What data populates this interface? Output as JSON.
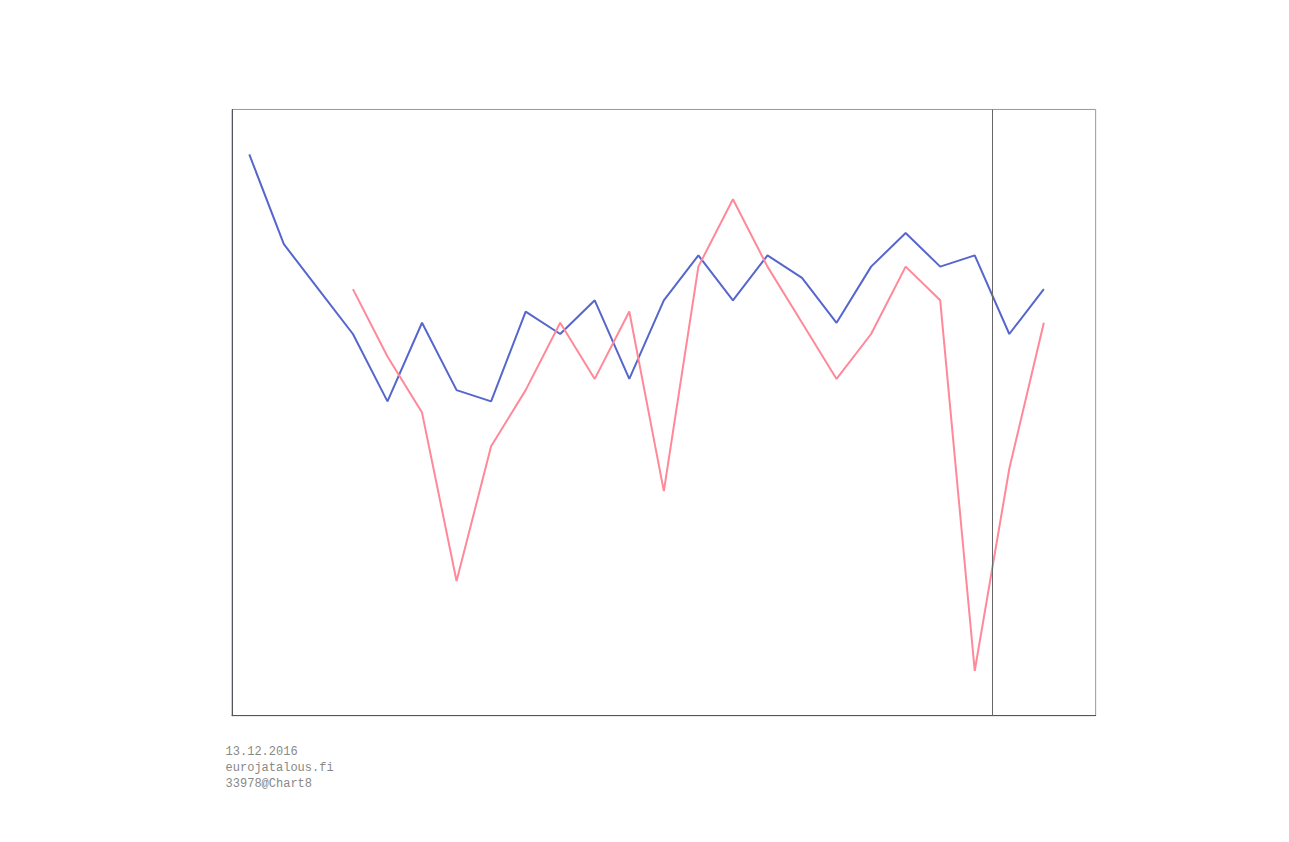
{
  "chart_data": {
    "type": "line",
    "x": [
      1993,
      1994,
      1995,
      1996,
      1997,
      1998,
      1999,
      2000,
      2001,
      2002,
      2003,
      2004,
      2005,
      2006,
      2007,
      2008,
      2009,
      2010,
      2011,
      2012,
      2013,
      2014,
      2015,
      2016
    ],
    "series": [
      {
        "color": "#5566cc",
        "values": [
          18,
          10,
          6,
          2,
          -4,
          3,
          -3,
          -4,
          4,
          2,
          5,
          -2,
          5,
          9,
          5,
          9,
          7,
          3,
          8,
          11,
          8,
          9,
          2,
          6
        ]
      },
      {
        "color": "#ff8899",
        "values": [
          null,
          null,
          null,
          6,
          0,
          -5,
          -20,
          -8,
          -3,
          3,
          -2,
          4,
          -12,
          8,
          14,
          8,
          3,
          -2,
          2,
          8,
          5,
          -28,
          -10,
          3
        ]
      }
    ],
    "vline": 2014.5,
    "xlim": [
      1992.5,
      2017.5
    ],
    "ylim": [
      -32,
      22
    ],
    "tick_labels": false,
    "grid": false,
    "annotations": [
      "13.12.2016",
      "eurojatalous.fi",
      "33978@Chart8"
    ]
  }
}
